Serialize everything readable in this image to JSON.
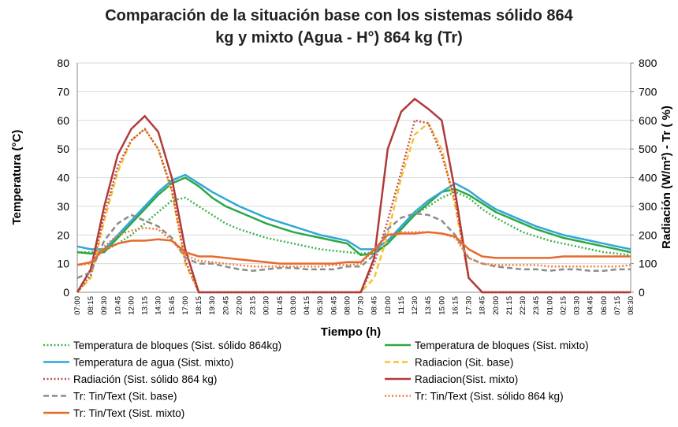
{
  "chart_data": {
    "type": "line",
    "title": "Comparación de la situación base con los sistemas sólido 864 kg y mixto (Agua - H°) 864 kg (Tr)",
    "x_label": "Tiempo (h)",
    "y_label": "Temperatura (°C)",
    "y2_label": "Radiación (W/m²)  - Tr ( %)",
    "categories": [
      "07:00",
      "08:15",
      "09:30",
      "10:45",
      "12:00",
      "13:15",
      "14:30",
      "15:45",
      "17:00",
      "18:15",
      "19:30",
      "20:45",
      "22:00",
      "23:15",
      "00:30",
      "01:45",
      "03:00",
      "04:15",
      "05:30",
      "06:45",
      "08:00",
      "07:30",
      "08:45",
      "10:00",
      "11:15",
      "12:30",
      "13:45",
      "15:00",
      "16:15",
      "17:30",
      "18:45",
      "20:00",
      "21:15",
      "22:30",
      "23:45",
      "01:00",
      "02:15",
      "03:30",
      "04:45",
      "06:00",
      "07:15",
      "08:30"
    ],
    "ylim": [
      0,
      80
    ],
    "yticks": [
      0,
      10,
      20,
      30,
      40,
      50,
      60,
      70,
      80
    ],
    "y2lim": [
      0,
      800
    ],
    "y2ticks": [
      0,
      100,
      200,
      300,
      400,
      500,
      600,
      700,
      800
    ],
    "grid": true,
    "legend": "bottom",
    "series": [
      {
        "name": "Temperatura de bloques (Sist. sólido 864kg)",
        "color": "#3cb44b",
        "style": "dotted",
        "axis": "y",
        "values": [
          14,
          14,
          14.5,
          17,
          20,
          24,
          28,
          32,
          33,
          30,
          27,
          24,
          22,
          20.5,
          19,
          18,
          17,
          16,
          15,
          14.5,
          14,
          13.5,
          14,
          17,
          22,
          27,
          30,
          33,
          35,
          33,
          29,
          26,
          23.5,
          21,
          19.5,
          18,
          17,
          16,
          15,
          14,
          13.5,
          13
        ]
      },
      {
        "name": "Temperatura de bloques  (Sist. mixto)",
        "color": "#2aa845",
        "style": "solid",
        "axis": "y",
        "values": [
          14,
          13.5,
          14,
          19,
          24,
          29,
          34,
          38,
          40,
          37,
          33,
          30,
          28,
          26,
          24,
          22.5,
          21,
          20,
          19,
          18,
          17,
          13,
          13.5,
          17,
          22,
          27,
          31,
          35,
          36,
          34,
          31,
          28,
          26,
          24,
          22,
          20.5,
          19,
          18,
          17,
          16,
          15,
          14
        ]
      },
      {
        "name": "Temperatura de agua (Sist. mixto)",
        "color": "#31a6d8",
        "style": "solid",
        "axis": "y",
        "values": [
          16,
          15,
          15,
          20,
          25,
          30,
          35,
          39,
          41,
          38,
          35,
          32.5,
          30,
          28,
          26,
          24.5,
          23,
          21.5,
          20,
          19,
          18,
          15,
          15,
          18,
          23,
          28,
          32,
          35,
          38,
          35.5,
          32,
          29,
          27,
          25,
          23,
          21.5,
          20,
          19,
          18,
          17,
          16,
          15
        ]
      },
      {
        "name": "Radiacion (Sit. base)",
        "color": "#f9c22e",
        "style": "dashed",
        "axis": "y2",
        "values": [
          0,
          50,
          250,
          420,
          530,
          570,
          500,
          350,
          100,
          0,
          0,
          0,
          0,
          0,
          0,
          0,
          0,
          0,
          0,
          0,
          0,
          0,
          50,
          200,
          400,
          550,
          590,
          500,
          300,
          50,
          0,
          0,
          0,
          0,
          0,
          0,
          0,
          0,
          0,
          0,
          0,
          0
        ]
      },
      {
        "name": "Radiación (Sist. sólido 864 kg)",
        "color": "#c0504d",
        "style": "dotted",
        "axis": "y2",
        "values": [
          0,
          60,
          270,
          440,
          530,
          570,
          500,
          360,
          110,
          0,
          0,
          0,
          0,
          0,
          0,
          0,
          0,
          0,
          0,
          0,
          0,
          0,
          100,
          250,
          420,
          600,
          590,
          480,
          320,
          50,
          0,
          0,
          0,
          0,
          0,
          0,
          0,
          0,
          0,
          0,
          0,
          0
        ]
      },
      {
        "name": "Radiacion(Sist. mixto)",
        "color": "#b03a3a",
        "style": "solid",
        "axis": "y2",
        "values": [
          0,
          80,
          300,
          480,
          570,
          615,
          560,
          400,
          150,
          0,
          0,
          0,
          0,
          0,
          0,
          0,
          0,
          0,
          0,
          0,
          0,
          0,
          120,
          500,
          630,
          675,
          640,
          600,
          350,
          50,
          0,
          0,
          0,
          0,
          0,
          0,
          0,
          0,
          0,
          0,
          0,
          0
        ]
      },
      {
        "name": "Tr: Tin/Text (Sit. base)",
        "color": "#8c8c8c",
        "style": "dashed",
        "axis": "y2",
        "values": [
          50,
          70,
          180,
          240,
          270,
          250,
          230,
          190,
          120,
          100,
          100,
          90,
          80,
          75,
          80,
          85,
          85,
          80,
          80,
          80,
          90,
          90,
          130,
          220,
          260,
          275,
          270,
          250,
          200,
          120,
          100,
          90,
          85,
          80,
          80,
          75,
          80,
          80,
          75,
          75,
          80,
          80
        ]
      },
      {
        "name": "Tr: Tin/Text (Sist. sólido 864 kg)",
        "color": "#f07f3c",
        "style": "dotted",
        "axis": "y2",
        "values": [
          95,
          100,
          160,
          200,
          215,
          225,
          220,
          180,
          130,
          110,
          105,
          100,
          95,
          90,
          90,
          90,
          90,
          90,
          90,
          95,
          95,
          100,
          150,
          200,
          210,
          210,
          210,
          205,
          190,
          120,
          100,
          95,
          95,
          95,
          95,
          90,
          90,
          90,
          90,
          90,
          90,
          95
        ]
      },
      {
        "name": "Tr: Tin/Text (Sist. mixto)",
        "color": "#e8692c",
        "style": "solid",
        "axis": "y2",
        "values": [
          95,
          105,
          150,
          170,
          180,
          180,
          185,
          180,
          140,
          125,
          125,
          120,
          115,
          110,
          105,
          100,
          100,
          100,
          100,
          100,
          105,
          105,
          150,
          200,
          205,
          205,
          210,
          205,
          195,
          150,
          125,
          120,
          120,
          120,
          120,
          120,
          125,
          125,
          125,
          125,
          125,
          125
        ]
      }
    ]
  }
}
